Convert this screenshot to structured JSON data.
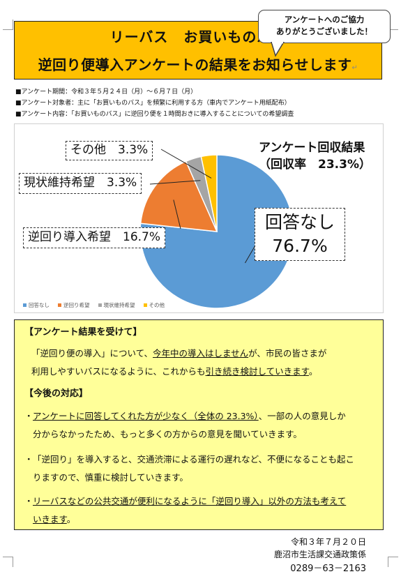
{
  "banner": {
    "line1_left": "リーバス",
    "line1_right": "お買いものバス",
    "line2": "逆回り便導入アンケートの結果をお知らせします"
  },
  "callout": {
    "line1": "アンケートへのご協力",
    "line2": "ありがとうございました！"
  },
  "meta": {
    "period": "■アンケート期間：令和３年５月２４日（月）～６月７日（月）",
    "target": "■アンケート対象者：主に「お買いものバス」を頻繁に利用する方（車内でアンケート用紙配布）",
    "content": "■アンケート内容：「お買いものバス」に逆回り便を１時間おきに導入することについての希望調査"
  },
  "chart_data": {
    "type": "pie",
    "title_line1": "アンケート回収結果",
    "title_line2": "（回収率　23.3%）",
    "slices": [
      {
        "name": "回答なし",
        "value": 76.7,
        "color": "#5b9bd5"
      },
      {
        "name": "逆回り希望",
        "value": 16.7,
        "color": "#ed7d31"
      },
      {
        "name": "現状維持希望",
        "value": 3.3,
        "color": "#a5a5a5"
      },
      {
        "name": "その他",
        "value": 3.3,
        "color": "#ffc000"
      }
    ],
    "data_labels": {
      "none_line1": "回答なし",
      "none_line2": "76.7%",
      "want": "逆回り導入希望　16.7%",
      "keep": "現状維持希望　3.3%",
      "other": "その他　3.3%"
    },
    "legend_position": "bottom-left"
  },
  "note": {
    "heading1": "【アンケート結果を受けて】",
    "p1_a": "「逆回り便の導入」について、",
    "p1_u": "今年中の導入はしません",
    "p1_b": "が、市民の皆さまが",
    "p2_a": "利用しやすいバスになるように、これからも",
    "p2_u": "引き続き検討していきます",
    "p2_b": "。",
    "heading2": "【今後の対応】",
    "b1_u": "アンケートに回答してくれた方が少なく（全体の 23.3%）",
    "b1_a": "、一部の人の意見しか",
    "b1_b": "分からなかったため、もっと多くの方からの意見を聞いていきます。",
    "b2_a": "「逆回り」を導入すると、交通渋滞による運行の遅れなど、不便になることも起こ",
    "b2_b": "りますので、慎重に検討していきます。",
    "b3_a": "リーバスなどの公共交通が便利になるように「逆回り導入」以外の方法も考えて",
    "b3_b": "いきます",
    "b3_c": "。"
  },
  "sign": {
    "date": "令和３年７月２０日",
    "dept": "鹿沼市生活課交通政策係",
    "tel": "0289－63－2163"
  }
}
